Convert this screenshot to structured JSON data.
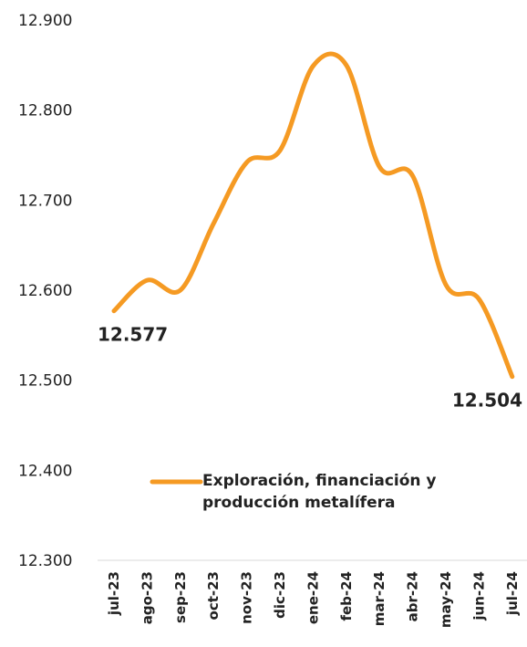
{
  "chart_data": {
    "type": "line",
    "categories": [
      "jul-23",
      "ago-23",
      "sep-23",
      "oct-23",
      "nov-23",
      "dic-23",
      "ene-24",
      "feb-24",
      "mar-24",
      "abr-24",
      "may-24",
      "jun-24",
      "jul-24"
    ],
    "series": [
      {
        "name": "Exploración, financiación y producción metalífera",
        "color": "#f59a23",
        "values": [
          12577,
          12611,
          12600,
          12674,
          12742,
          12755,
          12849,
          12850,
          12737,
          12727,
          12606,
          12590,
          12504
        ],
        "value_labels": [
          "12.577",
          null,
          null,
          null,
          null,
          null,
          null,
          null,
          null,
          null,
          null,
          null,
          "12.504"
        ]
      }
    ],
    "ylim": [
      12300,
      12900
    ],
    "yticks": [
      {
        "value": 12300,
        "label": "12.300"
      },
      {
        "value": 12400,
        "label": "12.400"
      },
      {
        "value": 12500,
        "label": "12.500"
      },
      {
        "value": 12600,
        "label": "12.600"
      },
      {
        "value": 12700,
        "label": "12.700"
      },
      {
        "value": 12800,
        "label": "12.800"
      },
      {
        "value": 12900,
        "label": "12.900"
      }
    ],
    "grid": false,
    "legend": "bottom"
  }
}
